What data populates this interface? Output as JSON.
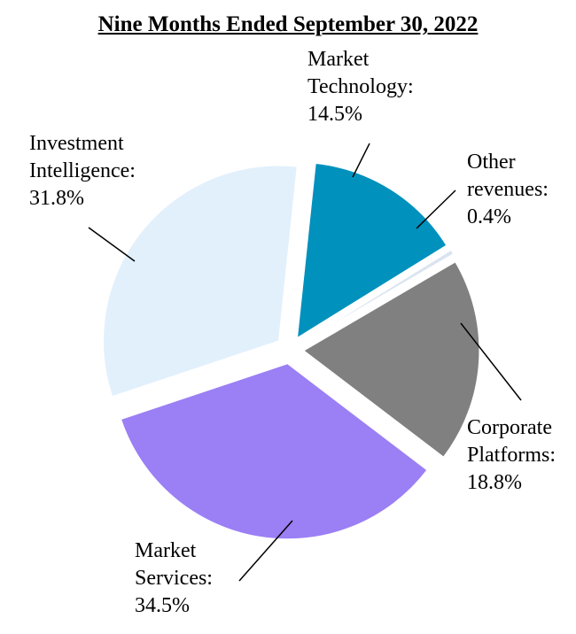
{
  "chart_data": {
    "type": "pie",
    "title": "Nine Months Ended September 30, 2022",
    "unit": "%",
    "slices": [
      {
        "label_lines": [
          "Market",
          "Technology:"
        ],
        "value": 14.5,
        "value_text": "14.5%",
        "color": "#0091bd"
      },
      {
        "label_lines": [
          "Other",
          "revenues:"
        ],
        "value": 0.4,
        "value_text": "0.4%",
        "color": "#dae4f0"
      },
      {
        "label_lines": [
          "Corporate",
          "Platforms:"
        ],
        "value": 18.8,
        "value_text": "18.8%",
        "color": "#808080"
      },
      {
        "label_lines": [
          "Market",
          "Services:"
        ],
        "value": 34.5,
        "value_text": "34.5%",
        "color": "#9b7ff5"
      },
      {
        "label_lines": [
          "Investment",
          "Intelligence:"
        ],
        "value": 31.8,
        "value_text": "31.8%",
        "color": "#e2f0fc"
      }
    ],
    "legend": "none"
  }
}
